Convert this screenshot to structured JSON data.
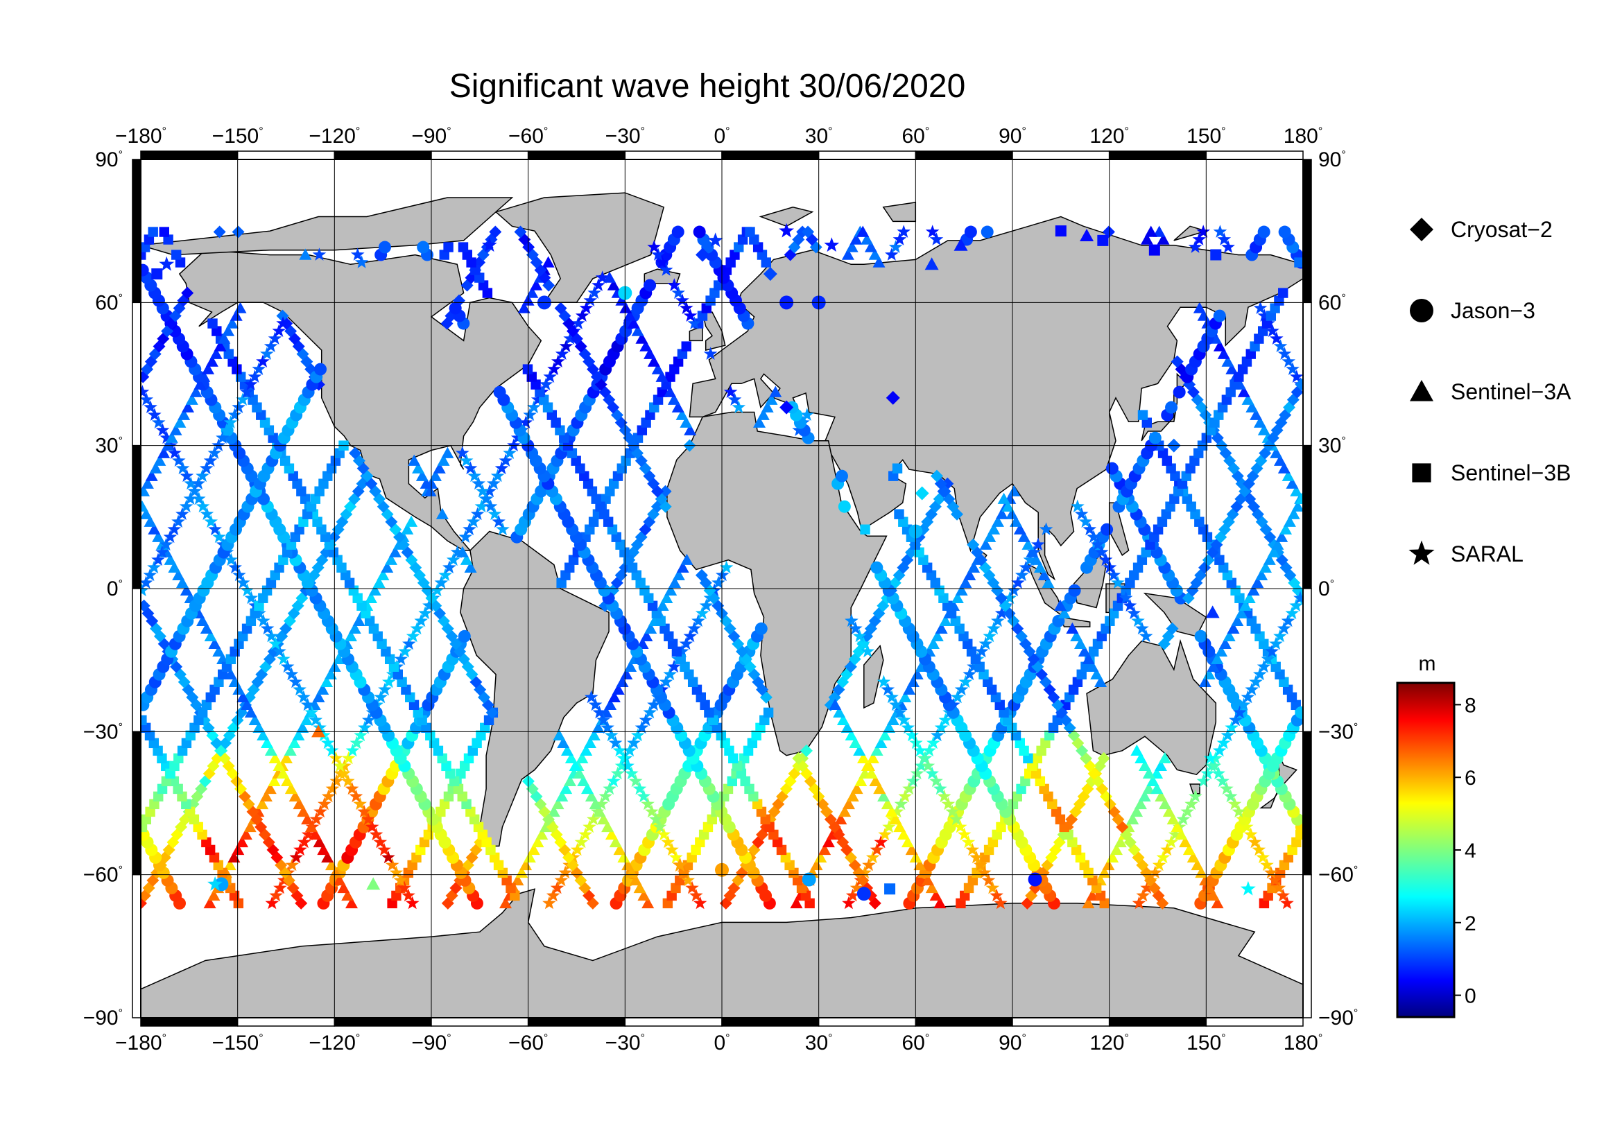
{
  "title": "Significant wave height 30/06/2020",
  "map": {
    "projection": "equirectangular",
    "lon_range": [
      -180,
      180
    ],
    "lat_range": [
      -90,
      90
    ],
    "grid": true,
    "land_color": "#bdbdbd",
    "ocean_color": "#ffffff",
    "lon_ticks": [
      -180,
      -150,
      -120,
      -90,
      -60,
      -30,
      0,
      30,
      60,
      90,
      120,
      150,
      180
    ],
    "lat_ticks": [
      90,
      60,
      30,
      0,
      -30,
      -60,
      -90
    ],
    "lon_tick_labels": [
      "−180",
      "−150",
      "−120",
      "−90",
      "−60",
      "−30",
      "0",
      "30",
      "60",
      "90",
      "120",
      "150",
      "180"
    ],
    "lat_tick_labels": [
      "90",
      "60",
      "30",
      "0",
      "−30",
      "−60",
      "−90"
    ],
    "degree_symbol": "°"
  },
  "legend": {
    "placement": "right",
    "items": [
      {
        "label": "Cryosat−2",
        "marker": "diamond"
      },
      {
        "label": "Jason−3",
        "marker": "circle"
      },
      {
        "label": "Sentinel−3A",
        "marker": "triangle"
      },
      {
        "label": "Sentinel−3B",
        "marker": "square"
      },
      {
        "label": "SARAL",
        "marker": "star"
      }
    ]
  },
  "colorbar": {
    "label": "m",
    "min": -0.6,
    "max": 8.6,
    "ticks": [
      0,
      2,
      4,
      6,
      8
    ],
    "tick_labels": [
      "0",
      "2",
      "4",
      "6",
      "8"
    ],
    "colormap": "jet"
  },
  "chart_data": {
    "type": "scatter",
    "variable": "significant wave height",
    "units": "m",
    "series": [
      {
        "name": "Cryosat−2",
        "marker": "diamond",
        "points": [
          {
            "lon": -6,
            "lat": 70,
            "v": 1.0
          },
          {
            "lon": 15,
            "lat": 66,
            "v": 1.2
          },
          {
            "lon": 53,
            "lat": 40,
            "v": 0.5
          },
          {
            "lon": 20,
            "lat": 38,
            "v": 0.6
          },
          {
            "lon": 140,
            "lat": 30,
            "v": 1.5
          },
          {
            "lon": 62,
            "lat": 20,
            "v": 2.5
          }
        ]
      },
      {
        "name": "Jason−3",
        "marker": "circle",
        "points": [
          {
            "lon": -55,
            "lat": 60,
            "v": 1.0
          },
          {
            "lon": 20,
            "lat": 60,
            "v": 0.8
          },
          {
            "lon": 30,
            "lat": 60,
            "v": 0.9
          },
          {
            "lon": -30,
            "lat": 62,
            "v": 2.5
          },
          {
            "lon": 0,
            "lat": -59,
            "v": 6.0
          },
          {
            "lon": 27,
            "lat": -61,
            "v": 2.0
          },
          {
            "lon": 44,
            "lat": -64,
            "v": 1.0
          },
          {
            "lon": 97,
            "lat": -61,
            "v": 0.7
          },
          {
            "lon": -155,
            "lat": -62,
            "v": 2.0
          },
          {
            "lon": 60,
            "lat": 12,
            "v": 2.2
          }
        ]
      },
      {
        "name": "Sentinel−3A",
        "marker": "triangle",
        "points": [
          {
            "lon": 65,
            "lat": 68,
            "v": 1.0
          },
          {
            "lon": 74,
            "lat": 72,
            "v": 0.8
          },
          {
            "lon": 113,
            "lat": 74,
            "v": 0.6
          },
          {
            "lon": 152,
            "lat": -5,
            "v": 1.0
          },
          {
            "lon": -125,
            "lat": -30,
            "v": 6.5
          },
          {
            "lon": -108,
            "lat": -62,
            "v": 4.0
          }
        ]
      },
      {
        "name": "Sentinel−3B",
        "marker": "square",
        "points": [
          {
            "lon": -175,
            "lat": 66,
            "v": 0.8
          },
          {
            "lon": 105,
            "lat": 75,
            "v": 0.6
          },
          {
            "lon": 118,
            "lat": 73,
            "v": 0.7
          },
          {
            "lon": 134,
            "lat": 71,
            "v": 0.5
          },
          {
            "lon": 153,
            "lat": 70,
            "v": 0.9
          },
          {
            "lon": 52,
            "lat": -63,
            "v": 1.5
          }
        ]
      },
      {
        "name": "SARAL",
        "marker": "star",
        "points": [
          {
            "lon": -172,
            "lat": 68,
            "v": 0.9
          },
          {
            "lon": -72,
            "lat": 72,
            "v": 0.8
          },
          {
            "lon": -2,
            "lat": 73,
            "v": 1.0
          },
          {
            "lon": 20,
            "lat": 75,
            "v": 0.6
          },
          {
            "lon": 34,
            "lat": 72,
            "v": 0.7
          },
          {
            "lon": -13,
            "lat": -58,
            "v": 6.0
          },
          {
            "lon": -157,
            "lat": -62,
            "v": 2.5
          },
          {
            "lon": 163,
            "lat": -63,
            "v": 2.8
          }
        ]
      }
    ]
  }
}
